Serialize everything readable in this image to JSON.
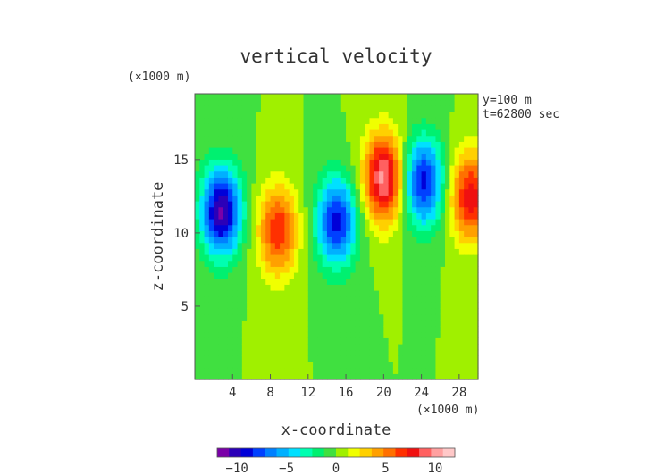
{
  "chart_data": {
    "type": "heatmap",
    "title": "vertical velocity",
    "xlabel": "x-coordinate",
    "ylabel": "z-coordinate",
    "x_unit": "(×1000 m)",
    "y_unit": "(×1000 m)",
    "xlim": [
      0,
      30
    ],
    "ylim": [
      0,
      19.5
    ],
    "xticks": [
      4,
      8,
      12,
      16,
      20,
      24,
      28
    ],
    "yticks": [
      5,
      10,
      15
    ],
    "annotations": [
      "y=100 m",
      "t=62800 sec"
    ],
    "colorbar": {
      "range": [
        -12,
        12
      ],
      "ticks": [
        -10,
        -5,
        0,
        5,
        10
      ],
      "colors": [
        "#7a00a8",
        "#2b00b8",
        "#0000d8",
        "#0040ff",
        "#0080ff",
        "#00b0ff",
        "#00e0ff",
        "#00ffb0",
        "#00f070",
        "#40e040",
        "#a0f000",
        "#f0ff00",
        "#ffd000",
        "#ffa000",
        "#ff7000",
        "#ff3000",
        "#f01010",
        "#ff6060",
        "#ffa0a0",
        "#ffc8c8"
      ]
    },
    "features": [
      {
        "x": 2.8,
        "z": 11.5,
        "value": -11
      },
      {
        "x": 8.8,
        "z": 10.2,
        "value": 7
      },
      {
        "x": 15.0,
        "z": 10.8,
        "value": -9
      },
      {
        "x": 20.0,
        "z": 13.8,
        "value": 10
      },
      {
        "x": 24.2,
        "z": 13.5,
        "value": -9
      },
      {
        "x": 29.2,
        "z": 12.5,
        "value": 8
      }
    ]
  }
}
